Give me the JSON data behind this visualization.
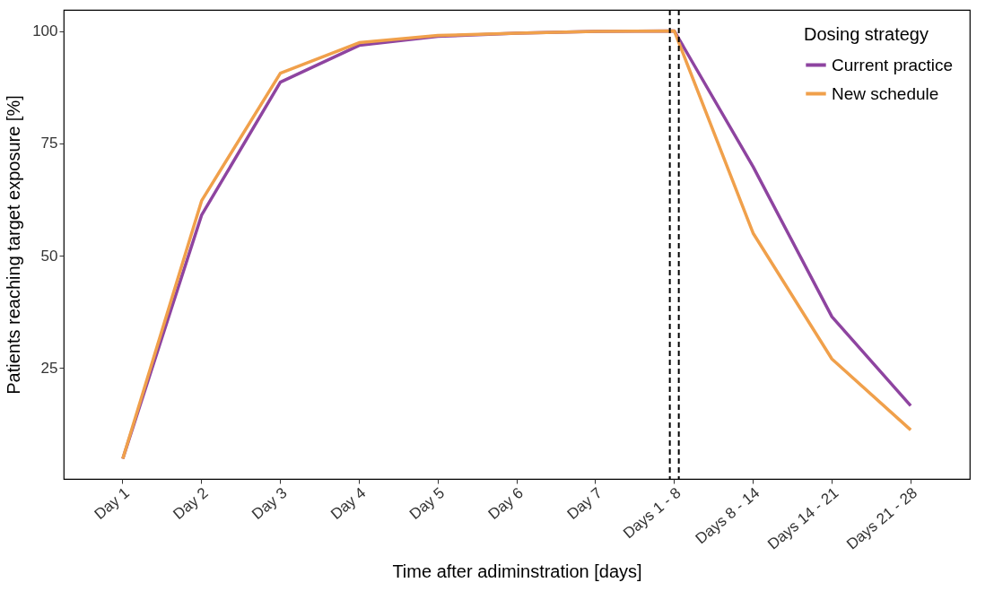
{
  "chart_data": {
    "type": "line",
    "xlabel": "Time after adiminstration [days]",
    "ylabel": "Patients reaching target exposure [%]",
    "legend_title": "Dosing strategy",
    "categories": [
      "Day 1",
      "Day 2",
      "Day 3",
      "Day 4",
      "Day 5",
      "Day 6",
      "Day 7",
      "Days 1 - 8",
      "Days 8 - 14",
      "Days 14 - 21",
      "Days 21 - 28"
    ],
    "series": [
      {
        "name": "Current practice",
        "color": "#8e44a0",
        "values": [
          4.8,
          59,
          88.6,
          96.8,
          98.8,
          99.5,
          99.9,
          100,
          69.8,
          36.4,
          16.6
        ]
      },
      {
        "name": "New schedule",
        "color": "#f0a04b",
        "values": [
          4.8,
          62.2,
          90.6,
          97.4,
          99,
          99.5,
          99.9,
          100,
          55,
          27,
          11.2
        ]
      }
    ],
    "ylim": [
      0.3,
      104.7
    ],
    "yticks": [
      25,
      50,
      75,
      100
    ],
    "grid": false,
    "legend": "top right",
    "marker": "none",
    "line_style": "solid",
    "ref_lines": [
      {
        "axis": "x",
        "value": "Days 1 - 8",
        "line_style": "dashed",
        "color": "#000000"
      },
      {
        "axis": "x",
        "value": "Days 1 - 8",
        "line_style": "dashed",
        "color": "#000000"
      }
    ]
  }
}
